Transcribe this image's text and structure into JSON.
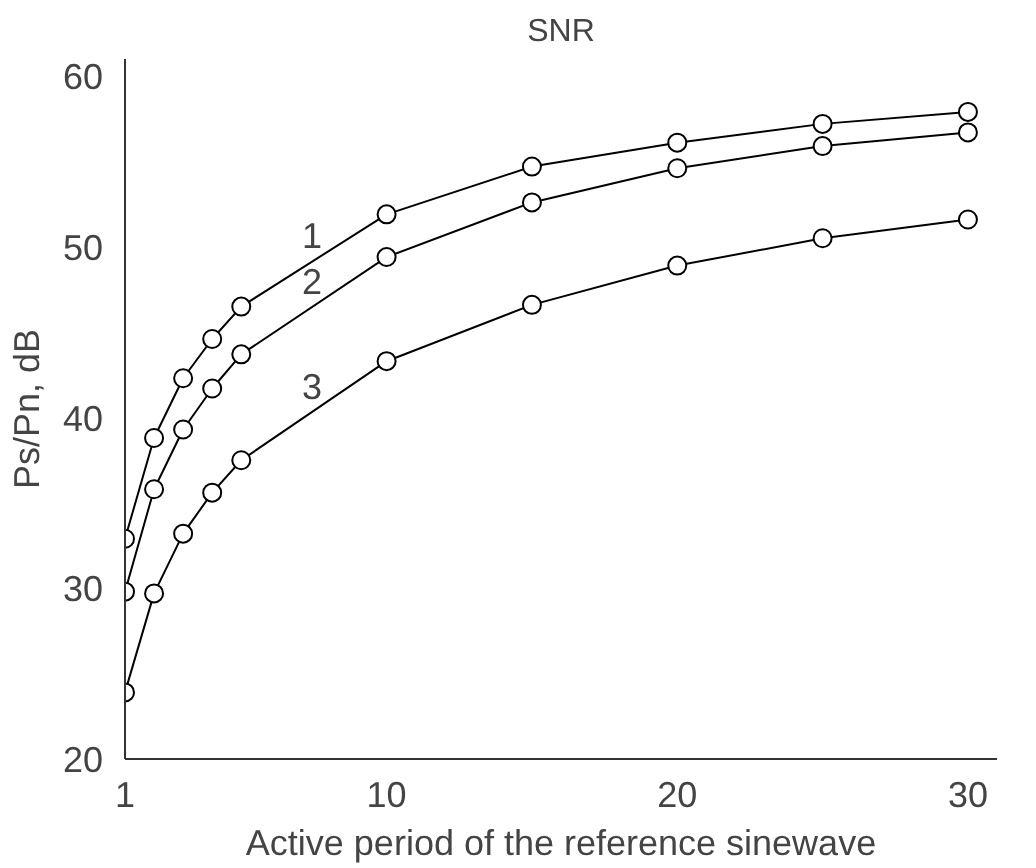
{
  "chart_data": {
    "type": "line",
    "title": "SNR",
    "xlabel": "Active period of the reference sinewave",
    "ylabel": "Ps/Pn, dB",
    "x": [
      1,
      2,
      3,
      4,
      5,
      10,
      15,
      20,
      25,
      30
    ],
    "series": [
      {
        "name": "1",
        "color": "#000000",
        "values": [
          32.9,
          38.8,
          42.3,
          44.6,
          46.5,
          51.9,
          54.7,
          56.1,
          57.2,
          57.9
        ]
      },
      {
        "name": "2",
        "color": "#000000",
        "values": [
          29.8,
          35.8,
          39.3,
          41.7,
          43.7,
          49.4,
          52.6,
          54.6,
          55.9,
          56.7
        ]
      },
      {
        "name": "3",
        "color": "#000000",
        "values": [
          23.9,
          29.7,
          33.2,
          35.6,
          37.5,
          43.3,
          46.6,
          48.9,
          50.5,
          51.6
        ]
      }
    ],
    "xlim": [
      1,
      31
    ],
    "ylim": [
      20,
      61
    ],
    "xticks": [
      1,
      10,
      20,
      30
    ],
    "yticks": [
      20,
      30,
      40,
      50,
      60
    ],
    "grid": false,
    "legend": false,
    "marker": "circle",
    "line_style": "solid"
  }
}
